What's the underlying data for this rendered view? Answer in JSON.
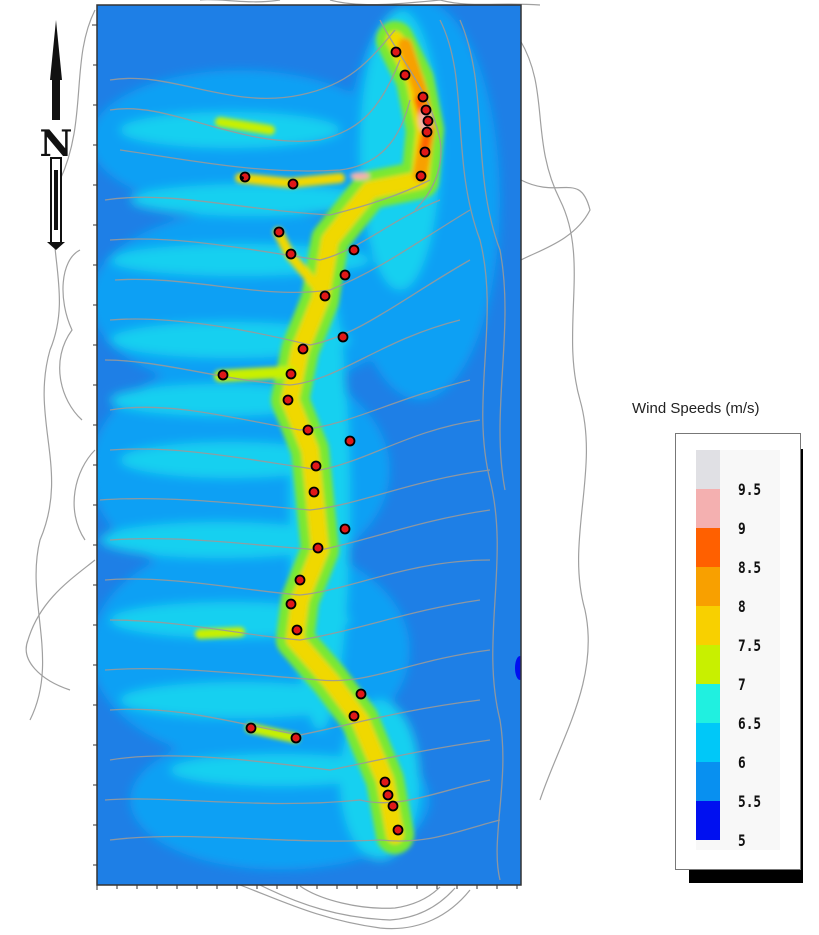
{
  "legend": {
    "title": "Wind Speeds (m/s)",
    "bins": [
      {
        "color": "#e0e0e4",
        "label": "9.5"
      },
      {
        "color": "#f4b0b0",
        "label": "9"
      },
      {
        "color": "#ff6000",
        "label": "8.5"
      },
      {
        "color": "#f8a000",
        "label": "8"
      },
      {
        "color": "#f8d000",
        "label": "7.5"
      },
      {
        "color": "#c8f000",
        "label": "7"
      },
      {
        "color": "#20f0e0",
        "label": "6.5"
      },
      {
        "color": "#00c8f8",
        "label": "6"
      },
      {
        "color": "#0890f0",
        "label": "5.5"
      },
      {
        "color": "#0010f0",
        "label": "5"
      }
    ]
  },
  "north_arrow": {
    "letter": "N"
  },
  "colors": {
    "background_low": "#1e7fe6",
    "contour": "#9a9a9a",
    "turbine": "#e01818"
  },
  "turbine_count": 38
}
